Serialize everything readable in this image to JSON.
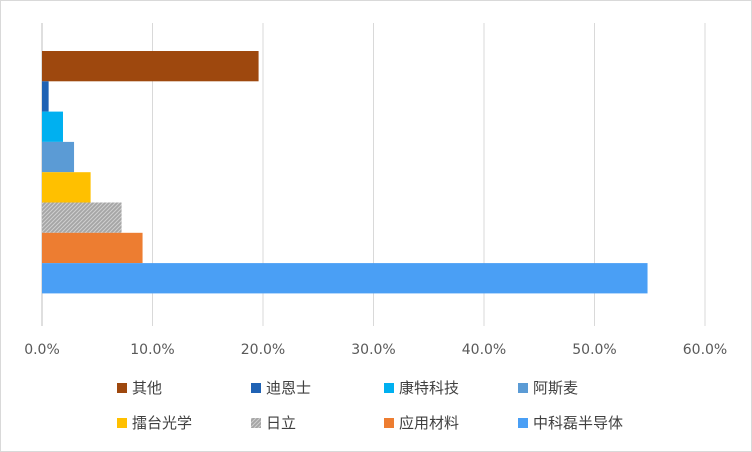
{
  "chart_data": {
    "type": "bar",
    "orientation": "horizontal",
    "title": "",
    "xlabel": "",
    "ylabel": "",
    "xlim": [
      0,
      60
    ],
    "x_ticks": [
      "0.0%",
      "10.0%",
      "20.0%",
      "30.0%",
      "40.0%",
      "50.0%",
      "60.0%"
    ],
    "grid": true,
    "legend_position": "bottom",
    "series": [
      {
        "name": "其他",
        "value": 19.6,
        "color": "#9e480e"
      },
      {
        "name": "迪恩士",
        "value": 0.6,
        "color": "#1f62b4"
      },
      {
        "name": "康特科技",
        "value": 1.9,
        "color": "#00b0f0"
      },
      {
        "name": "阿斯麦",
        "value": 2.9,
        "color": "#5b9bd5"
      },
      {
        "name": "擂台光学",
        "value": 4.4,
        "color": "#ffc000"
      },
      {
        "name": "日立",
        "value": 7.2,
        "color": "#a5a5a5"
      },
      {
        "name": "应用材料",
        "value": 9.1,
        "color": "#ed7d31"
      },
      {
        "name": "中科磊半导体",
        "value": 54.8,
        "color": "#4a9ff5"
      }
    ]
  }
}
